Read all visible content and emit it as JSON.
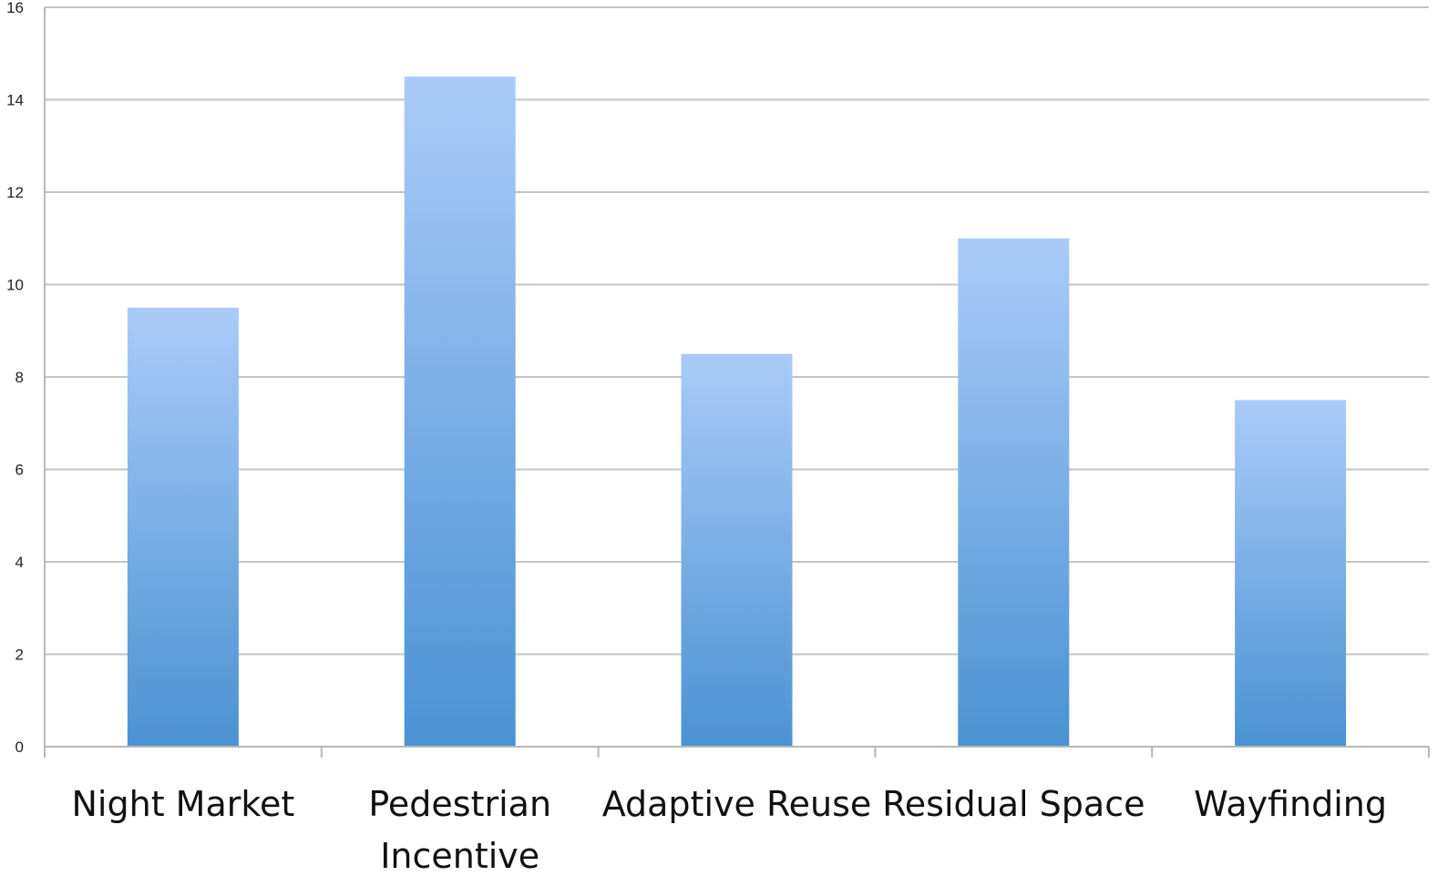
{
  "chart_data": {
    "type": "bar",
    "title": "",
    "xlabel": "",
    "ylabel": "",
    "categories": [
      "Night Market",
      "Pedestrian Incentive",
      "Adaptive Reuse",
      "Residual Space",
      "Wayfinding"
    ],
    "category_label_lines": [
      [
        "Night Market"
      ],
      [
        "Pedestrian",
        "Incentive"
      ],
      [
        "Adaptive Reuse"
      ],
      [
        "Residual Space"
      ],
      [
        "Wayfinding"
      ]
    ],
    "values": [
      9.5,
      14.5,
      8.5,
      11,
      7.5
    ],
    "ylim": [
      0,
      16
    ],
    "yticks": [
      0,
      2,
      4,
      6,
      8,
      10,
      12,
      14,
      16
    ],
    "grid": true,
    "legend": "none",
    "colors": {
      "bar_top": "#aacbf8",
      "bar_bottom": "#4a92d3",
      "grid": "#c4c4c4",
      "axis": "#b8b8b8"
    }
  }
}
